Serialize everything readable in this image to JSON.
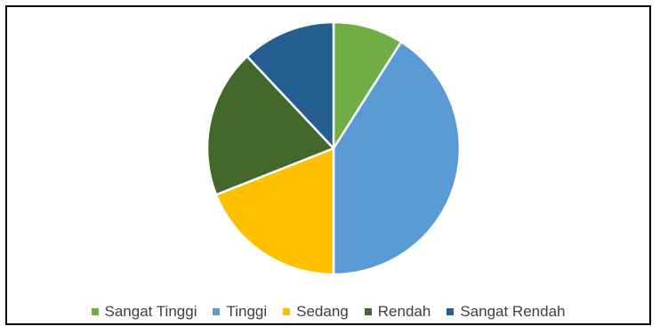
{
  "chart_data": {
    "type": "pie",
    "title": "",
    "categories": [
      "Sangat Tinggi",
      "Tinggi",
      "Sedang",
      "Rendah",
      "Sangat Rendah"
    ],
    "values": [
      9,
      41,
      19,
      19,
      12
    ],
    "colors": [
      "#70AD47",
      "#5B9BD5",
      "#FFC000",
      "#43682B",
      "#255E91"
    ],
    "start_angle_deg": 0,
    "direction": "clockwise",
    "legend_position": "bottom",
    "data_labels": false
  }
}
